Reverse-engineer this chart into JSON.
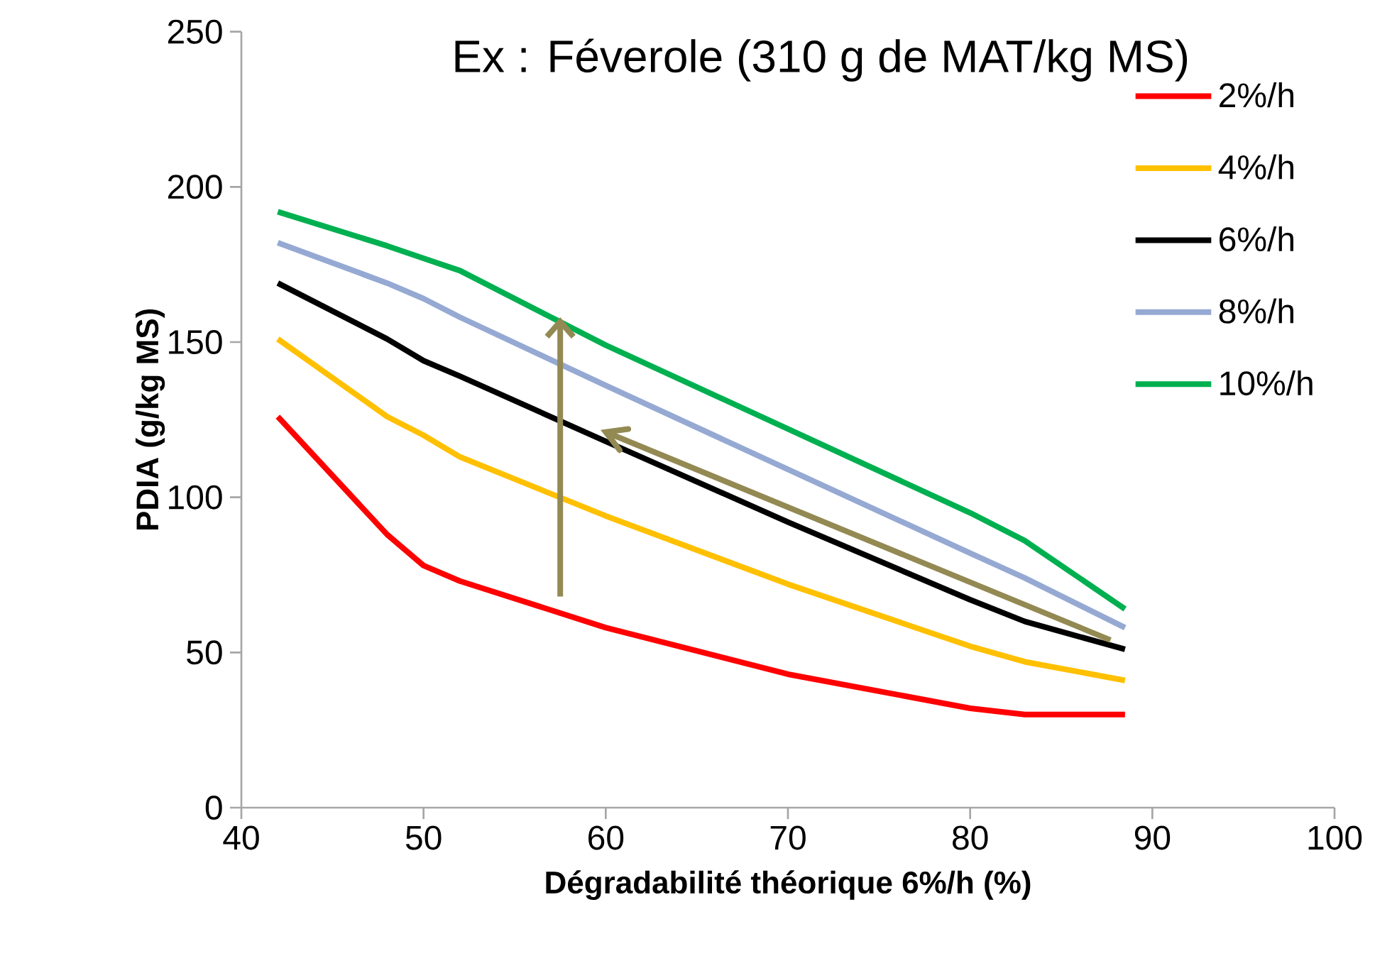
{
  "chart_data": {
    "type": "line",
    "title": "Ex : Féverole (310 g de MAT/kg MS)",
    "xlabel": "Dégradabilité théorique 6%/h (%)",
    "ylabel": "PDIA (g/kg MS)",
    "x": [
      42,
      48,
      50,
      52,
      60,
      70,
      80,
      83,
      88.5
    ],
    "series": [
      {
        "name": "2%/h",
        "color": "#ff0000",
        "values": [
          126,
          88,
          78,
          73,
          58,
          43,
          32,
          30,
          30
        ]
      },
      {
        "name": "4%/h",
        "color": "#ffc000",
        "values": [
          151,
          126,
          120,
          113,
          94,
          72,
          52,
          47,
          41
        ]
      },
      {
        "name": "6%/h",
        "color": "#000000",
        "values": [
          169,
          151,
          144,
          139,
          118,
          92,
          67,
          60,
          51
        ]
      },
      {
        "name": "8%/h",
        "color": "#95a9d3",
        "values": [
          182,
          169,
          164,
          158,
          136,
          109,
          82,
          74,
          58
        ]
      },
      {
        "name": "10%/h",
        "color": "#00b050",
        "values": [
          192,
          181,
          177,
          173,
          149,
          122,
          95,
          86,
          64
        ]
      }
    ],
    "xlim": [
      40,
      100
    ],
    "xticks": [
      40,
      50,
      60,
      70,
      80,
      90,
      100
    ],
    "ylim": [
      0,
      250
    ],
    "yticks": [
      0,
      50,
      100,
      150,
      200,
      250
    ],
    "grid": false,
    "legend": "top right",
    "marker": "none",
    "line_style": "solid"
  }
}
